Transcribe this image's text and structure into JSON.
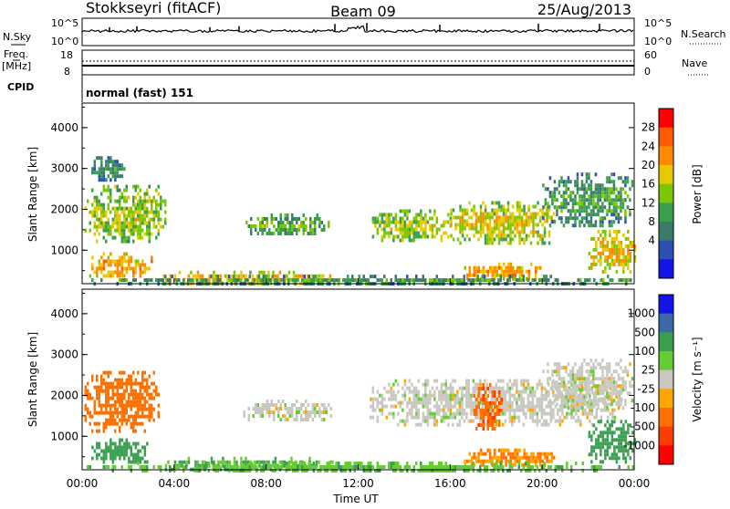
{
  "header": {
    "station": "Stokkseyri (fitACF)",
    "beam": "Beam 09",
    "date": "25/Aug/2013"
  },
  "top_panels": {
    "nsky_label": "N.Sky",
    "nsky_ticks": [
      "10^5",
      "10^0"
    ],
    "nsearch_label": "N.Search",
    "nsearch_ticks": [
      "10^5",
      "10^0"
    ],
    "freq_label": "Freq.",
    "freq_unit": "[MHz]",
    "freq_ticks": [
      "18",
      "8"
    ],
    "nave_label": "Nave",
    "nave_ticks": [
      "60",
      "0"
    ],
    "cpid_label": "CPID",
    "cpid_text": "normal (fast) 151"
  },
  "chart_data": [
    {
      "type": "heatmap",
      "name": "power",
      "xlabel": "",
      "ylabel": "Slant Range [km]",
      "xlim": [
        0,
        24
      ],
      "ylim": [
        180,
        4600
      ],
      "y_ticks": [
        "4000",
        "3000",
        "2000",
        "1000"
      ],
      "colorbar": {
        "label": "Power [dB]",
        "ticks": [
          "28",
          "24",
          "20",
          "16",
          "12",
          "8",
          "4"
        ],
        "colors": [
          "#ff0000",
          "#ff5a00",
          "#ff8c00",
          "#e8c800",
          "#7cc800",
          "#3aa050",
          "#3c7a6a",
          "#2a50b0",
          "#1414e6"
        ]
      },
      "regions": [
        {
          "t0": 0.1,
          "t1": 3.6,
          "r0": 1200,
          "r1": 2600,
          "level": 14
        },
        {
          "t0": 0.3,
          "t1": 3.0,
          "r0": 350,
          "r1": 950,
          "level": 20
        },
        {
          "t0": 3.5,
          "t1": 11.2,
          "r0": 200,
          "r1": 500,
          "level": 18
        },
        {
          "t0": 7.0,
          "t1": 10.8,
          "r0": 1400,
          "r1": 1900,
          "level": 10
        },
        {
          "t0": 12.6,
          "t1": 16.0,
          "r0": 1200,
          "r1": 2000,
          "level": 14
        },
        {
          "t0": 16.0,
          "t1": 20.5,
          "r0": 1200,
          "r1": 2200,
          "level": 16
        },
        {
          "t0": 20.0,
          "t1": 23.9,
          "r0": 1600,
          "r1": 2900,
          "level": 8
        },
        {
          "t0": 16.6,
          "t1": 20.0,
          "r0": 300,
          "r1": 700,
          "level": 20
        },
        {
          "t0": 22.0,
          "t1": 24.0,
          "r0": 500,
          "r1": 1500,
          "level": 18
        },
        {
          "t0": 0.0,
          "t1": 24.0,
          "r0": 180,
          "r1": 400,
          "level": 8
        },
        {
          "t0": 0.3,
          "t1": 1.8,
          "r0": 2700,
          "r1": 3300,
          "level": 6
        }
      ]
    },
    {
      "type": "heatmap",
      "name": "velocity",
      "xlabel": "Time UT",
      "ylabel": "Slant Range [km]",
      "xlim": [
        0,
        24
      ],
      "ylim": [
        180,
        4600
      ],
      "x_ticks": [
        "00:00",
        "04:00",
        "08:00",
        "12:00",
        "16:00",
        "20:00",
        "00:00"
      ],
      "y_ticks": [
        "4000",
        "3000",
        "2000",
        "1000"
      ],
      "colorbar": {
        "label": "Velocity [m s⁻¹]",
        "ticks": [
          "1000",
          "500",
          "100",
          "25",
          "-25",
          "-100",
          "-500",
          "-1000"
        ],
        "colors": [
          "#1414e6",
          "#3c6aa8",
          "#3aa050",
          "#66cc33",
          "#c8c8c0",
          "#ffa500",
          "#ff7000",
          "#ff3c00",
          "#ff0000"
        ]
      },
      "regions": [
        {
          "t0": 0.1,
          "t1": 3.3,
          "r0": 1150,
          "r1": 2600,
          "level": -300
        },
        {
          "t0": 0.4,
          "t1": 2.8,
          "r0": 350,
          "r1": 950,
          "level": 200
        },
        {
          "t0": 3.5,
          "t1": 11.0,
          "r0": 200,
          "r1": 500,
          "level": 100
        },
        {
          "t0": 7.0,
          "t1": 10.8,
          "r0": 1400,
          "r1": 1900,
          "level": 0
        },
        {
          "t0": 12.5,
          "t1": 23.5,
          "r0": 1300,
          "r1": 2400,
          "level": 0
        },
        {
          "t0": 20.0,
          "t1": 23.9,
          "r0": 1700,
          "r1": 2900,
          "level": 0
        },
        {
          "t0": 16.5,
          "t1": 20.5,
          "r0": 300,
          "r1": 700,
          "level": -100
        },
        {
          "t0": 22.0,
          "t1": 24.0,
          "r0": 400,
          "r1": 1400,
          "level": 250
        },
        {
          "t0": 0.0,
          "t1": 24.0,
          "r0": 180,
          "r1": 380,
          "level": 80
        },
        {
          "t0": 17.0,
          "t1": 18.2,
          "r0": 1200,
          "r1": 2300,
          "level": -400
        }
      ]
    }
  ]
}
